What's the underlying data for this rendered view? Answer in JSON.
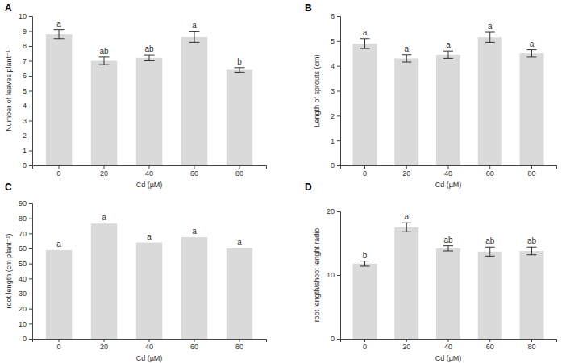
{
  "chart_data": [
    {
      "type": "bar",
      "title": "A",
      "x_label": "Cd (µM)",
      "y_label": "Number of leaves plant⁻¹",
      "categories": [
        "0",
        "20",
        "40",
        "60",
        "80"
      ],
      "values": [
        8.8,
        7.0,
        7.2,
        8.6,
        6.4
      ],
      "errors": [
        0.3,
        0.25,
        0.2,
        0.35,
        0.15
      ],
      "annotations": [
        "a",
        "ab",
        "ab",
        "a",
        "b"
      ],
      "color": "#dadada",
      "ylim": [
        0,
        10
      ],
      "yticks": [
        0,
        1,
        2,
        3,
        4,
        5,
        6,
        7,
        8,
        9,
        10
      ]
    },
    {
      "type": "bar",
      "title": "B",
      "x_label": "Cd (µM)",
      "y_label": "Length of sprouts (cm)",
      "categories": [
        "0",
        "20",
        "40",
        "60",
        "80"
      ],
      "values": [
        4.9,
        4.3,
        4.45,
        5.15,
        4.5
      ],
      "errors": [
        0.2,
        0.15,
        0.15,
        0.2,
        0.15
      ],
      "annotations": [
        "a",
        "a",
        "a",
        "a",
        "a"
      ],
      "color": "#dadada",
      "ylim": [
        0,
        6
      ],
      "yticks": [
        0,
        1,
        2,
        3,
        4,
        5,
        6
      ]
    },
    {
      "type": "bar",
      "title": "C",
      "x_label": "Cd (µM)",
      "y_label": "root length (cm plant⁻¹)",
      "categories": [
        "0",
        "20",
        "40",
        "60",
        "80"
      ],
      "values": [
        59,
        76.5,
        64,
        67.5,
        60
      ],
      "annotations": [
        "a",
        "a",
        "a",
        "a",
        "a"
      ],
      "color": "#dadada",
      "ylim": [
        0,
        90
      ],
      "yticks": [
        0,
        10,
        20,
        30,
        40,
        50,
        60,
        70,
        80,
        90
      ]
    },
    {
      "type": "bar",
      "title": "D",
      "x_label": "Cd (µM)",
      "y_label": "root length/shoot lenght radio",
      "categories": [
        "0",
        "20",
        "40",
        "60",
        "80"
      ],
      "values": [
        11.8,
        17.5,
        14.2,
        13.7,
        13.8
      ],
      "errors": [
        0.4,
        0.7,
        0.4,
        0.7,
        0.6
      ],
      "annotations": [
        "b",
        "a",
        "ab",
        "ab",
        "ab"
      ],
      "color": "#dadada",
      "ylim": [
        0,
        20
      ],
      "yticks": [
        0,
        10,
        20
      ]
    }
  ]
}
